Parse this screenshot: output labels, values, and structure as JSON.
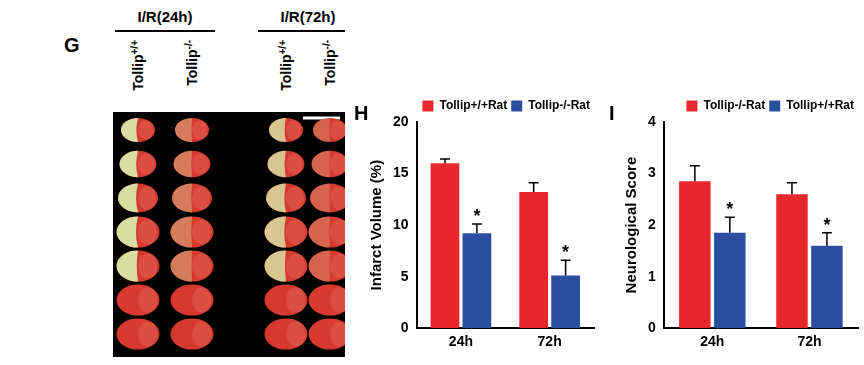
{
  "image_panel": {
    "panel": "G",
    "groups": [
      {
        "title": "I/R(24h)",
        "columns": [
          "Tollip+/+",
          "Tollip-/-"
        ]
      },
      {
        "title": "I/R(72h)",
        "columns": [
          "Tollip+/+",
          "Tollip-/-"
        ]
      }
    ]
  },
  "chart_data": [
    {
      "type": "bar",
      "panel": "H",
      "y_label": "Infarct Volume (%)",
      "categories": [
        "24h",
        "72h"
      ],
      "series": [
        {
          "name": "Tollip+/+Rat",
          "color": "#e8262d",
          "values": [
            16.0,
            13.2
          ],
          "errors": [
            0.4,
            0.9
          ]
        },
        {
          "name": "Tollip-/-Rat",
          "color": "#2c4ea0",
          "values": [
            9.2,
            5.1
          ],
          "errors": [
            0.9,
            1.5
          ]
        }
      ],
      "ylim": [
        0,
        20
      ],
      "yticks": [
        0,
        5,
        10,
        15,
        20
      ],
      "grid": false,
      "legend": "top-right",
      "annotations": [
        {
          "text": "*",
          "category": "24h",
          "series": "Tollip-/-Rat"
        },
        {
          "text": "*",
          "category": "72h",
          "series": "Tollip-/-Rat"
        }
      ]
    },
    {
      "type": "bar",
      "panel": "I",
      "y_label": "Neurological Score",
      "categories": [
        "24h",
        "72h"
      ],
      "series": [
        {
          "name": "Tollip-/-Rat",
          "color": "#e8262d",
          "values": [
            2.85,
            2.6
          ],
          "errors": [
            0.3,
            0.22
          ]
        },
        {
          "name": "Tollip+/+Rat",
          "color": "#2c4ea0",
          "values": [
            1.85,
            1.6
          ],
          "errors": [
            0.3,
            0.25
          ]
        }
      ],
      "ylim": [
        0,
        4
      ],
      "yticks": [
        0,
        1,
        2,
        3,
        4
      ],
      "grid": false,
      "legend": "top-right",
      "annotations": [
        {
          "text": "*",
          "category": "24h",
          "series": "Tollip+/+Rat"
        },
        {
          "text": "*",
          "category": "72h",
          "series": "Tollip+/+Rat"
        }
      ]
    }
  ]
}
